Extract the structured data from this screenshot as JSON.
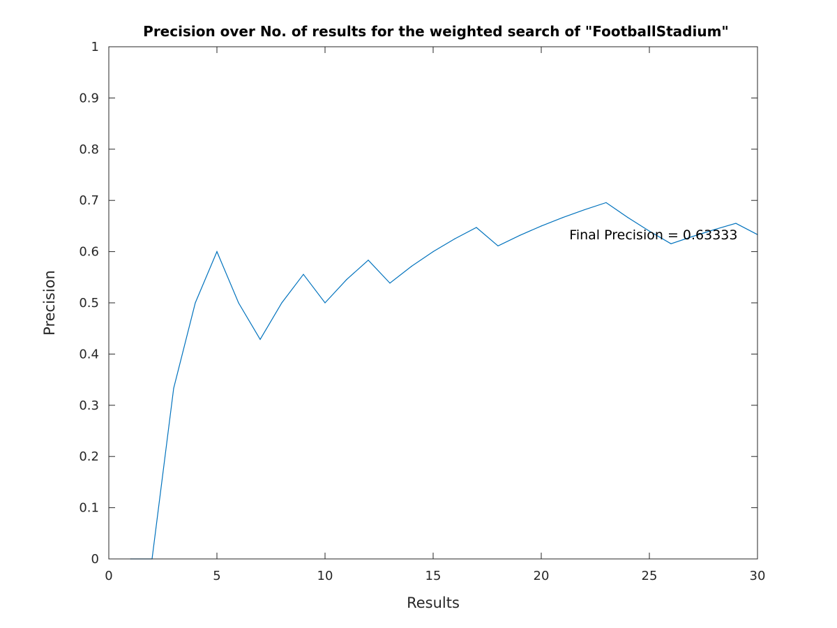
{
  "chart_data": {
    "type": "line",
    "title": "Precision over No. of results for the weighted search of \"FootballStadium\"",
    "xlabel": "Results",
    "ylabel": "Precision",
    "xlim": [
      0,
      30
    ],
    "ylim": [
      0,
      1
    ],
    "xticks": [
      0,
      5,
      10,
      15,
      20,
      25,
      30
    ],
    "xtick_labels": [
      "0",
      "5",
      "10",
      "15",
      "20",
      "25",
      "30"
    ],
    "yticks": [
      0,
      0.1,
      0.2,
      0.3,
      0.4,
      0.5,
      0.6,
      0.7,
      0.8,
      0.9,
      1
    ],
    "ytick_labels": [
      "0",
      "0.1",
      "0.2",
      "0.3",
      "0.4",
      "0.5",
      "0.6",
      "0.7",
      "0.8",
      "0.9",
      "1"
    ],
    "grid": false,
    "series": [
      {
        "color": "#0072BD",
        "x": [
          1,
          2,
          3,
          4,
          5,
          6,
          7,
          8,
          9,
          10,
          11,
          12,
          13,
          14,
          15,
          16,
          17,
          18,
          19,
          20,
          21,
          22,
          23,
          24,
          25,
          26,
          27,
          28,
          29,
          30
        ],
        "y": [
          0,
          0,
          0.3333,
          0.5,
          0.6,
          0.5,
          0.4286,
          0.5,
          0.5556,
          0.5,
          0.5455,
          0.5833,
          0.5385,
          0.5714,
          0.6,
          0.625,
          0.6471,
          0.6111,
          0.6316,
          0.65,
          0.6667,
          0.6818,
          0.6957,
          0.6667,
          0.64,
          0.6154,
          0.6296,
          0.6429,
          0.6552,
          0.6333
        ]
      }
    ],
    "annotations": [
      {
        "text": "Final Precision = 0.63333",
        "x": 21.3,
        "y": 0.63333
      }
    ]
  }
}
